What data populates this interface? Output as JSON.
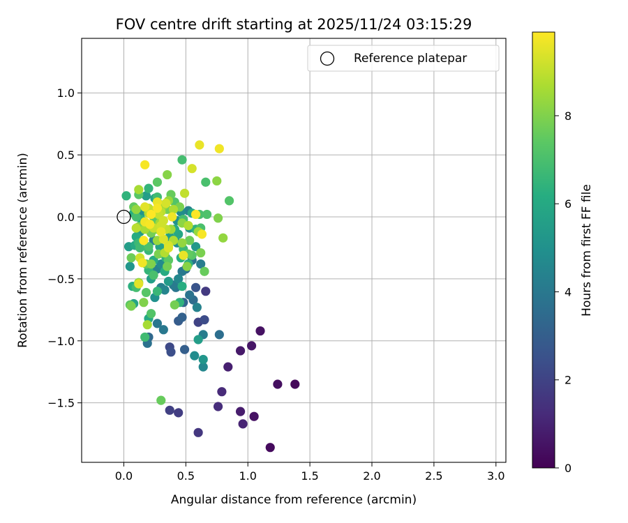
{
  "chart_data": {
    "type": "scatter",
    "title": "FOV centre drift starting at 2025/11/24 03:15:29",
    "xlabel": "Angular distance from reference (arcmin)",
    "ylabel": "Rotation from reference (arcmin)",
    "xlim": [
      -0.34,
      3.08
    ],
    "ylim": [
      -1.98,
      1.44
    ],
    "xticks": [
      0.0,
      0.5,
      1.0,
      1.5,
      2.0,
      2.5,
      3.0
    ],
    "xtick_labels": [
      "0.0",
      "0.5",
      "1.0",
      "1.5",
      "2.0",
      "2.5",
      "3.0"
    ],
    "yticks": [
      1.0,
      0.5,
      0.0,
      -0.5,
      -1.0,
      -1.5
    ],
    "ytick_labels": [
      "1.0",
      "0.5",
      "0.0",
      "−0.5",
      "−1.0",
      "−1.5"
    ],
    "grid": true,
    "legend": {
      "position": "top-right",
      "label": "Reference platepar",
      "marker": "open-circle"
    },
    "reference_point": {
      "x": 0.0,
      "y": 0.0
    },
    "colorbar": {
      "label": "Hours from first FF file",
      "colormap": "viridis",
      "range": [
        0,
        9.9
      ],
      "ticks": [
        0,
        2,
        4,
        6,
        8
      ],
      "tick_labels": [
        "0",
        "2",
        "4",
        "6",
        "8"
      ]
    },
    "points": [
      {
        "x": 1.18,
        "y": -1.86,
        "c": 0.3
      },
      {
        "x": 1.05,
        "y": -1.61,
        "c": 0.5
      },
      {
        "x": 0.96,
        "y": -1.67,
        "c": 1.0
      },
      {
        "x": 0.94,
        "y": -1.57,
        "c": 0.8
      },
      {
        "x": 0.79,
        "y": -1.41,
        "c": 1.2
      },
      {
        "x": 0.76,
        "y": -1.53,
        "c": 1.3
      },
      {
        "x": 1.24,
        "y": -1.35,
        "c": 0.4
      },
      {
        "x": 1.38,
        "y": -1.35,
        "c": 0.2
      },
      {
        "x": 0.84,
        "y": -1.21,
        "c": 0.9
      },
      {
        "x": 0.94,
        "y": -1.08,
        "c": 0.7
      },
      {
        "x": 1.03,
        "y": -1.04,
        "c": 0.6
      },
      {
        "x": 1.1,
        "y": -0.92,
        "c": 0.5
      },
      {
        "x": 0.6,
        "y": -1.74,
        "c": 1.6
      },
      {
        "x": 0.37,
        "y": -1.56,
        "c": 1.9
      },
      {
        "x": 0.44,
        "y": -1.58,
        "c": 1.8
      },
      {
        "x": 0.3,
        "y": -1.48,
        "c": 7.6
      },
      {
        "x": 0.37,
        "y": -1.05,
        "c": 2.2
      },
      {
        "x": 0.38,
        "y": -1.09,
        "c": 2.4
      },
      {
        "x": 0.49,
        "y": -1.07,
        "c": 3.0
      },
      {
        "x": 0.6,
        "y": -0.85,
        "c": 2.0
      },
      {
        "x": 0.65,
        "y": -0.83,
        "c": 2.3
      },
      {
        "x": 0.58,
        "y": -0.57,
        "c": 2.6
      },
      {
        "x": 0.66,
        "y": -0.6,
        "c": 1.7
      },
      {
        "x": 0.57,
        "y": -1.12,
        "c": 4.8
      },
      {
        "x": 0.64,
        "y": -1.15,
        "c": 5.2
      },
      {
        "x": 0.64,
        "y": -1.21,
        "c": 4.6
      },
      {
        "x": 0.6,
        "y": -0.99,
        "c": 5.5
      },
      {
        "x": 0.64,
        "y": -0.95,
        "c": 4.2
      },
      {
        "x": 0.77,
        "y": -0.95,
        "c": 3.6
      },
      {
        "x": 0.59,
        "y": -0.73,
        "c": 4.4
      },
      {
        "x": 0.56,
        "y": -0.67,
        "c": 3.5
      },
      {
        "x": 0.53,
        "y": -0.63,
        "c": 3.8
      },
      {
        "x": 0.48,
        "y": -0.69,
        "c": 3.3
      },
      {
        "x": 0.44,
        "y": -0.84,
        "c": 2.9
      },
      {
        "x": 0.47,
        "y": -0.81,
        "c": 3.1
      },
      {
        "x": 0.32,
        "y": -0.91,
        "c": 4.0
      },
      {
        "x": 0.27,
        "y": -0.86,
        "c": 3.9
      },
      {
        "x": 0.2,
        "y": -0.97,
        "c": 3.4
      },
      {
        "x": 0.19,
        "y": -1.02,
        "c": 3.7
      },
      {
        "x": 0.17,
        "y": -0.97,
        "c": 6.8
      },
      {
        "x": 0.19,
        "y": -0.87,
        "c": 8.6
      },
      {
        "x": 0.22,
        "y": -0.78,
        "c": 7.2
      },
      {
        "x": 0.2,
        "y": -0.82,
        "c": 6.0
      },
      {
        "x": 0.16,
        "y": -0.69,
        "c": 8.0
      },
      {
        "x": 0.18,
        "y": -0.61,
        "c": 7.3
      },
      {
        "x": 0.06,
        "y": -0.72,
        "c": 7.9
      },
      {
        "x": 0.08,
        "y": -0.7,
        "c": 5.8
      },
      {
        "x": 0.05,
        "y": -0.71,
        "c": 7.4
      },
      {
        "x": 0.07,
        "y": -0.56,
        "c": 6.3
      },
      {
        "x": 0.12,
        "y": -0.54,
        "c": 9.5
      },
      {
        "x": 0.12,
        "y": -0.53,
        "c": 8.2
      },
      {
        "x": 0.1,
        "y": -0.57,
        "c": 6.9
      },
      {
        "x": 0.25,
        "y": -0.65,
        "c": 5.0
      },
      {
        "x": 0.27,
        "y": -0.6,
        "c": 6.6
      },
      {
        "x": 0.3,
        "y": -0.57,
        "c": 4.3
      },
      {
        "x": 0.33,
        "y": -0.59,
        "c": 4.5
      },
      {
        "x": 0.36,
        "y": -0.52,
        "c": 5.4
      },
      {
        "x": 0.4,
        "y": -0.55,
        "c": 4.1
      },
      {
        "x": 0.42,
        "y": -0.57,
        "c": 3.9
      },
      {
        "x": 0.47,
        "y": -0.56,
        "c": 6.2
      },
      {
        "x": 0.44,
        "y": -0.5,
        "c": 4.6
      },
      {
        "x": 0.47,
        "y": -0.44,
        "c": 4.0
      },
      {
        "x": 0.5,
        "y": -0.42,
        "c": 3.6
      },
      {
        "x": 0.41,
        "y": -0.71,
        "c": 7.8
      },
      {
        "x": 0.45,
        "y": -0.69,
        "c": 6.4
      },
      {
        "x": 0.27,
        "y": -0.42,
        "c": 4.4
      },
      {
        "x": 0.3,
        "y": -0.38,
        "c": 4.7
      },
      {
        "x": 0.33,
        "y": -0.44,
        "c": 6.1
      },
      {
        "x": 0.2,
        "y": -0.43,
        "c": 6.5
      },
      {
        "x": 0.22,
        "y": -0.5,
        "c": 5.6
      },
      {
        "x": 0.24,
        "y": -0.47,
        "c": 7.0
      },
      {
        "x": 0.18,
        "y": -0.38,
        "c": 7.5
      },
      {
        "x": 0.15,
        "y": -0.37,
        "c": 9.7
      },
      {
        "x": 0.13,
        "y": -0.33,
        "c": 9.2
      },
      {
        "x": 0.06,
        "y": -0.33,
        "c": 7.7
      },
      {
        "x": 0.05,
        "y": -0.4,
        "c": 5.2
      },
      {
        "x": 0.04,
        "y": -0.24,
        "c": 5.5
      },
      {
        "x": 0.09,
        "y": -0.23,
        "c": 6.0
      },
      {
        "x": 0.13,
        "y": -0.25,
        "c": 6.8
      },
      {
        "x": 0.2,
        "y": -0.24,
        "c": 7.1
      },
      {
        "x": 0.2,
        "y": -0.27,
        "c": 6.6
      },
      {
        "x": 0.29,
        "y": -0.24,
        "c": 5.7
      },
      {
        "x": 0.28,
        "y": -0.3,
        "c": 7.9
      },
      {
        "x": 0.36,
        "y": -0.23,
        "c": 9.3
      },
      {
        "x": 0.35,
        "y": -0.4,
        "c": 7.8
      },
      {
        "x": 0.36,
        "y": -0.35,
        "c": 7.4
      },
      {
        "x": 0.46,
        "y": -0.33,
        "c": 6.2
      },
      {
        "x": 0.48,
        "y": -0.31,
        "c": 9.6
      },
      {
        "x": 0.52,
        "y": -0.3,
        "c": 7.5
      },
      {
        "x": 0.55,
        "y": -0.35,
        "c": 3.8
      },
      {
        "x": 0.52,
        "y": -0.38,
        "c": 6.3
      },
      {
        "x": 0.51,
        "y": -0.4,
        "c": 8.1
      },
      {
        "x": 0.55,
        "y": -0.31,
        "c": 7.3
      },
      {
        "x": 0.62,
        "y": -0.38,
        "c": 4.2
      },
      {
        "x": 0.62,
        "y": -0.29,
        "c": 7.9
      },
      {
        "x": 0.65,
        "y": -0.44,
        "c": 7.6
      },
      {
        "x": 0.58,
        "y": -0.24,
        "c": 5.3
      },
      {
        "x": 0.48,
        "y": -0.26,
        "c": 6.7
      },
      {
        "x": 0.43,
        "y": -0.21,
        "c": 4.9
      },
      {
        "x": 0.47,
        "y": -0.21,
        "c": 8.3
      },
      {
        "x": 0.53,
        "y": -0.19,
        "c": 7.7
      },
      {
        "x": 0.53,
        "y": -0.09,
        "c": 5.1
      },
      {
        "x": 0.58,
        "y": -0.1,
        "c": 6.4
      },
      {
        "x": 0.6,
        "y": -0.12,
        "c": 8.4
      },
      {
        "x": 0.63,
        "y": -0.14,
        "c": 9.8
      },
      {
        "x": 0.62,
        "y": -0.09,
        "c": 7.0
      },
      {
        "x": 0.52,
        "y": -0.07,
        "c": 8.8
      },
      {
        "x": 0.47,
        "y": -0.05,
        "c": 8.2
      },
      {
        "x": 0.48,
        "y": -0.02,
        "c": 6.9
      },
      {
        "x": 0.41,
        "y": -0.1,
        "c": 6.0
      },
      {
        "x": 0.44,
        "y": -0.14,
        "c": 5.9
      },
      {
        "x": 0.38,
        "y": -0.1,
        "c": 8.5
      },
      {
        "x": 0.37,
        "y": -0.16,
        "c": 5.6
      },
      {
        "x": 0.32,
        "y": -0.18,
        "c": 9.4
      },
      {
        "x": 0.34,
        "y": -0.1,
        "c": 9.0
      },
      {
        "x": 0.3,
        "y": -0.07,
        "c": 9.2
      },
      {
        "x": 0.3,
        "y": -0.12,
        "c": 9.6
      },
      {
        "x": 0.27,
        "y": -0.19,
        "c": 8.4
      },
      {
        "x": 0.27,
        "y": -0.1,
        "c": 8.0
      },
      {
        "x": 0.24,
        "y": -0.09,
        "c": 9.1
      },
      {
        "x": 0.25,
        "y": -0.04,
        "c": 7.3
      },
      {
        "x": 0.22,
        "y": -0.13,
        "c": 7.8
      },
      {
        "x": 0.21,
        "y": -0.06,
        "c": 9.8
      },
      {
        "x": 0.17,
        "y": -0.1,
        "c": 8.6
      },
      {
        "x": 0.17,
        "y": -0.04,
        "c": 9.7
      },
      {
        "x": 0.13,
        "y": -0.12,
        "c": 5.4
      },
      {
        "x": 0.1,
        "y": -0.09,
        "c": 8.9
      },
      {
        "x": 0.1,
        "y": -0.16,
        "c": 6.1
      },
      {
        "x": 0.12,
        "y": -0.21,
        "c": 6.7
      },
      {
        "x": 0.16,
        "y": -0.19,
        "c": 9.9
      },
      {
        "x": 0.24,
        "y": -0.19,
        "c": 4.3
      },
      {
        "x": 0.36,
        "y": -0.25,
        "c": 9.4
      },
      {
        "x": 0.4,
        "y": -0.19,
        "c": 8.7
      },
      {
        "x": 0.12,
        "y": -0.08,
        "c": 8.0
      },
      {
        "x": 0.1,
        "y": 0.0,
        "c": 6.9
      },
      {
        "x": 0.1,
        "y": 0.06,
        "c": 8.3
      },
      {
        "x": 0.14,
        "y": -0.02,
        "c": 6.3
      },
      {
        "x": 0.15,
        "y": 0.04,
        "c": 5.1
      },
      {
        "x": 0.17,
        "y": 0.08,
        "c": 9.5
      },
      {
        "x": 0.2,
        "y": 0.07,
        "c": 9.0
      },
      {
        "x": 0.2,
        "y": 0.03,
        "c": 8.8
      },
      {
        "x": 0.22,
        "y": 0.02,
        "c": 9.9
      },
      {
        "x": 0.24,
        "y": 0.0,
        "c": 7.4
      },
      {
        "x": 0.25,
        "y": 0.05,
        "c": 6.5
      },
      {
        "x": 0.27,
        "y": 0.07,
        "c": 9.8
      },
      {
        "x": 0.28,
        "y": 0.02,
        "c": 9.1
      },
      {
        "x": 0.3,
        "y": 0.04,
        "c": 8.9
      },
      {
        "x": 0.27,
        "y": 0.12,
        "c": 9.6
      },
      {
        "x": 0.25,
        "y": 0.15,
        "c": 5.8
      },
      {
        "x": 0.29,
        "y": 0.1,
        "c": 6.0
      },
      {
        "x": 0.31,
        "y": 0.08,
        "c": 8.1
      },
      {
        "x": 0.33,
        "y": 0.1,
        "c": 8.6
      },
      {
        "x": 0.34,
        "y": 0.11,
        "c": 9.3
      },
      {
        "x": 0.35,
        "y": 0.06,
        "c": 7.8
      },
      {
        "x": 0.36,
        "y": 0.13,
        "c": 8.4
      },
      {
        "x": 0.38,
        "y": 0.18,
        "c": 7.6
      },
      {
        "x": 0.4,
        "y": 0.06,
        "c": 8.7
      },
      {
        "x": 0.41,
        "y": 0.12,
        "c": 7.2
      },
      {
        "x": 0.39,
        "y": 0.0,
        "c": 9.7
      },
      {
        "x": 0.43,
        "y": -0.03,
        "c": 5.0
      },
      {
        "x": 0.45,
        "y": 0.08,
        "c": 7.9
      },
      {
        "x": 0.46,
        "y": 0.04,
        "c": 4.8
      },
      {
        "x": 0.52,
        "y": 0.05,
        "c": 4.4
      },
      {
        "x": 0.55,
        "y": 0.03,
        "c": 6.1
      },
      {
        "x": 0.58,
        "y": 0.02,
        "c": 9.9
      },
      {
        "x": 0.61,
        "y": 0.02,
        "c": 7.0
      },
      {
        "x": 0.67,
        "y": 0.02,
        "c": 7.1
      },
      {
        "x": 0.76,
        "y": -0.01,
        "c": 8.0
      },
      {
        "x": 0.8,
        "y": -0.17,
        "c": 8.3
      },
      {
        "x": 0.85,
        "y": 0.13,
        "c": 7.2
      },
      {
        "x": 0.75,
        "y": 0.29,
        "c": 8.2
      },
      {
        "x": 0.66,
        "y": 0.28,
        "c": 7.0
      },
      {
        "x": 0.49,
        "y": 0.19,
        "c": 9.0
      },
      {
        "x": 0.55,
        "y": 0.39,
        "c": 9.3
      },
      {
        "x": 0.47,
        "y": 0.46,
        "c": 6.9
      },
      {
        "x": 0.61,
        "y": 0.58,
        "c": 9.6
      },
      {
        "x": 0.77,
        "y": 0.55,
        "c": 9.7
      },
      {
        "x": 0.35,
        "y": 0.34,
        "c": 8.1
      },
      {
        "x": 0.27,
        "y": 0.28,
        "c": 7.4
      },
      {
        "x": 0.2,
        "y": 0.23,
        "c": 6.5
      },
      {
        "x": 0.17,
        "y": 0.42,
        "c": 9.8
      },
      {
        "x": 0.12,
        "y": 0.22,
        "c": 8.6
      },
      {
        "x": 0.12,
        "y": 0.18,
        "c": 7.3
      },
      {
        "x": 0.02,
        "y": 0.17,
        "c": 6.4
      },
      {
        "x": 0.08,
        "y": 0.08,
        "c": 7.5
      },
      {
        "x": 0.08,
        "y": 0.03,
        "c": 6.2
      },
      {
        "x": 0.27,
        "y": 0.16,
        "c": 6.8
      },
      {
        "x": 0.32,
        "y": -0.03,
        "c": 9.2
      },
      {
        "x": 0.29,
        "y": -0.05,
        "c": 8.5
      },
      {
        "x": 0.18,
        "y": 0.17,
        "c": 5.5
      },
      {
        "x": 0.33,
        "y": -0.29,
        "c": 8.8
      },
      {
        "x": 0.34,
        "y": -0.33,
        "c": 6.4
      },
      {
        "x": 0.22,
        "y": -0.38,
        "c": 8.0
      },
      {
        "x": 0.24,
        "y": -0.35,
        "c": 6.1
      }
    ]
  }
}
